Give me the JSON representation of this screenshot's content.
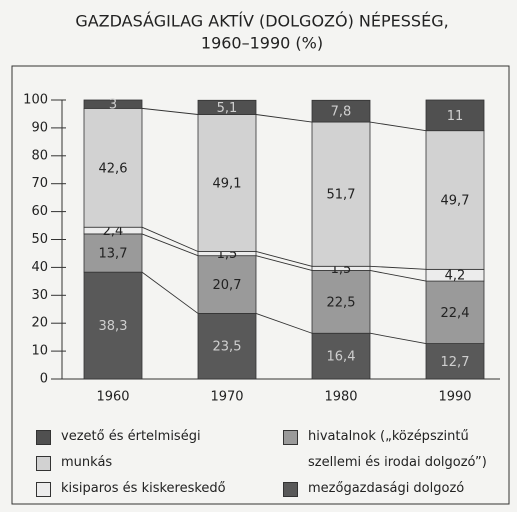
{
  "chart_data": {
    "type": "stacked_bar",
    "title": [
      "GAZDASÁGILAG AKTÍV (DOLGOZÓ) NÉPESSÉG,",
      "1960–1990 (%)"
    ],
    "categories": [
      "1960",
      "1970",
      "1980",
      "1990"
    ],
    "series": [
      {
        "name": "vezető és értelmiségi",
        "color": "#505050",
        "label_color": "#cfcfcf",
        "values": [
          3,
          5.1,
          7.8,
          11
        ],
        "value_labels": [
          "3",
          "5,1",
          "7,8",
          "11"
        ]
      },
      {
        "name": "munkás",
        "color": "#d2d2d2",
        "label_color": "#222222",
        "values": [
          42.6,
          49.1,
          51.7,
          49.7
        ],
        "value_labels": [
          "42,6",
          "49,1",
          "51,7",
          "49,7"
        ]
      },
      {
        "name": "kisiparos és kiskereskedő",
        "color": "#ececec",
        "label_color": "#222222",
        "values": [
          2.4,
          1.5,
          1.5,
          4.2
        ],
        "value_labels": [
          "2,4",
          "1,5",
          "1,5",
          "4,2"
        ]
      },
      {
        "name": "hivatalnok („középszintű szellemi és irodai dolgozó”)",
        "color": "#9a9a9a",
        "label_color": "#222222",
        "values": [
          13.7,
          20.7,
          22.5,
          22.4
        ],
        "value_labels": [
          "13,7",
          "20,7",
          "22,5",
          "22,4"
        ]
      },
      {
        "name": "mezőgazdasági dolgozó",
        "color": "#595959",
        "label_color": "#cfcfcf",
        "values": [
          38.3,
          23.5,
          16.4,
          12.7
        ],
        "value_labels": [
          "38,3",
          "23,5",
          "16,4",
          "12,7"
        ]
      }
    ],
    "ylim": [
      0,
      100
    ],
    "yticks": [
      0,
      10,
      20,
      30,
      40,
      50,
      60,
      70,
      80,
      90,
      100
    ]
  }
}
